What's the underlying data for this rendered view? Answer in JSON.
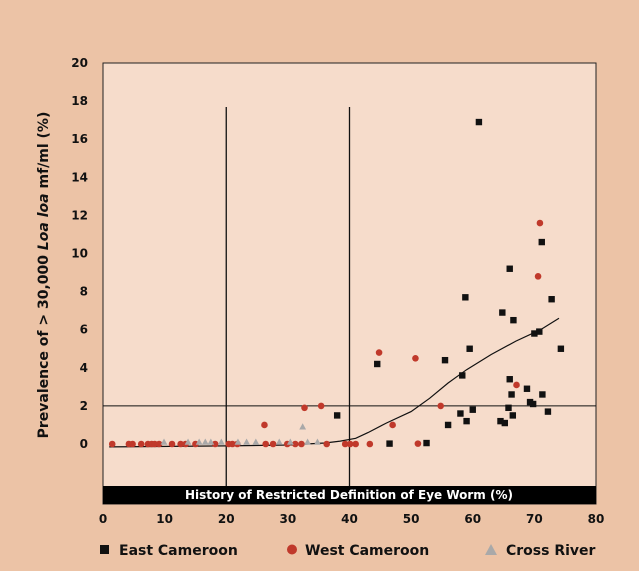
{
  "chart_data": {
    "type": "scatter",
    "title": "",
    "ylabel_parts": [
      "Prevalence of > 30,000 ",
      "Loa loa",
      " mf/ml (%)"
    ],
    "xlabel": "History of Restricted Definition of Eye Worm (%)",
    "xlim": [
      0,
      80
    ],
    "ylim": [
      0,
      20
    ],
    "x_ticks": [
      0,
      10,
      20,
      30,
      40,
      50,
      60,
      70,
      80
    ],
    "y_ticks": [
      0,
      2,
      4,
      6,
      8,
      10,
      12,
      14,
      16,
      18,
      20
    ],
    "grid": false,
    "legend_position": "bottom",
    "reference_lines": {
      "vertical_x": [
        20,
        40
      ],
      "horizontal_y": [
        2
      ]
    },
    "colors": {
      "background": "#ecc3a6",
      "plot_area": "#f6dccb",
      "East Cameroon": "#111111",
      "West Cameroon": "#c0392b",
      "Cross River": "#a9a9a9",
      "trend": "#111111"
    },
    "series": [
      {
        "name": "East Cameroon",
        "marker": "square",
        "points": [
          [
            38,
            1.5
          ],
          [
            44.5,
            4.2
          ],
          [
            46.5,
            0.02
          ],
          [
            52.5,
            0.05
          ],
          [
            55.5,
            4.4
          ],
          [
            56,
            1.0
          ],
          [
            58,
            1.6
          ],
          [
            58.3,
            3.6
          ],
          [
            58.8,
            7.7
          ],
          [
            59,
            1.2
          ],
          [
            59.5,
            5.0
          ],
          [
            60,
            1.8
          ],
          [
            61,
            16.9
          ],
          [
            64.5,
            1.2
          ],
          [
            64.8,
            6.9
          ],
          [
            65.2,
            1.1
          ],
          [
            65.8,
            1.9
          ],
          [
            66,
            3.4
          ],
          [
            66,
            9.2
          ],
          [
            66.3,
            2.6
          ],
          [
            66.5,
            1.5
          ],
          [
            66.6,
            6.5
          ],
          [
            68.8,
            2.9
          ],
          [
            69.3,
            2.2
          ],
          [
            69.8,
            2.1
          ],
          [
            70,
            5.8
          ],
          [
            70.8,
            5.9
          ],
          [
            71.2,
            10.6
          ],
          [
            71.3,
            2.6
          ],
          [
            72.2,
            1.7
          ],
          [
            72.8,
            7.6
          ],
          [
            74.3,
            5.0
          ]
        ]
      },
      {
        "name": "West Cameroon",
        "marker": "circle",
        "points": [
          [
            1.5,
            0
          ],
          [
            4.2,
            0
          ],
          [
            4.8,
            0
          ],
          [
            6.2,
            0
          ],
          [
            7.3,
            0
          ],
          [
            7.9,
            0
          ],
          [
            8.4,
            0
          ],
          [
            9.1,
            0
          ],
          [
            11.2,
            0
          ],
          [
            12.6,
            0
          ],
          [
            13.4,
            0
          ],
          [
            15,
            0
          ],
          [
            18.2,
            0
          ],
          [
            20.4,
            0
          ],
          [
            21,
            0
          ],
          [
            21.8,
            0
          ],
          [
            26.2,
            1.0
          ],
          [
            26.4,
            0
          ],
          [
            27.6,
            0
          ],
          [
            29.9,
            0
          ],
          [
            31.2,
            0
          ],
          [
            32.2,
            0
          ],
          [
            32.7,
            1.9
          ],
          [
            35.4,
            2.0
          ],
          [
            36.3,
            0
          ],
          [
            39.3,
            0
          ],
          [
            40.1,
            0
          ],
          [
            41,
            0
          ],
          [
            43.3,
            0
          ],
          [
            44.8,
            4.8
          ],
          [
            47,
            1.0
          ],
          [
            50.7,
            4.5
          ],
          [
            51.1,
            0.02
          ],
          [
            54.8,
            2.0
          ],
          [
            67.1,
            3.1
          ],
          [
            70.6,
            8.8
          ],
          [
            70.9,
            11.6
          ]
        ]
      },
      {
        "name": "Cross River",
        "marker": "triangle",
        "points": [
          [
            9.9,
            0.1
          ],
          [
            13.8,
            0.1
          ],
          [
            15.6,
            0.1
          ],
          [
            16.6,
            0.1
          ],
          [
            17.5,
            0.1
          ],
          [
            19.2,
            0.1
          ],
          [
            21.9,
            0.1
          ],
          [
            23.3,
            0.1
          ],
          [
            24.8,
            0.1
          ],
          [
            28.6,
            0.1
          ],
          [
            30.4,
            0.1
          ],
          [
            32.4,
            0.9
          ],
          [
            33.2,
            0.1
          ],
          [
            34.8,
            0.1
          ]
        ]
      }
    ],
    "trend_line": [
      [
        1,
        -0.15
      ],
      [
        20,
        -0.1
      ],
      [
        30,
        -0.05
      ],
      [
        36,
        0.05
      ],
      [
        38.5,
        0.15
      ],
      [
        41,
        0.3
      ],
      [
        43,
        0.6
      ],
      [
        46,
        1.1
      ],
      [
        50,
        1.7
      ],
      [
        53,
        2.4
      ],
      [
        56,
        3.2
      ],
      [
        59,
        3.9
      ],
      [
        63,
        4.7
      ],
      [
        67,
        5.4
      ],
      [
        71,
        6.0
      ],
      [
        74,
        6.6
      ]
    ]
  }
}
